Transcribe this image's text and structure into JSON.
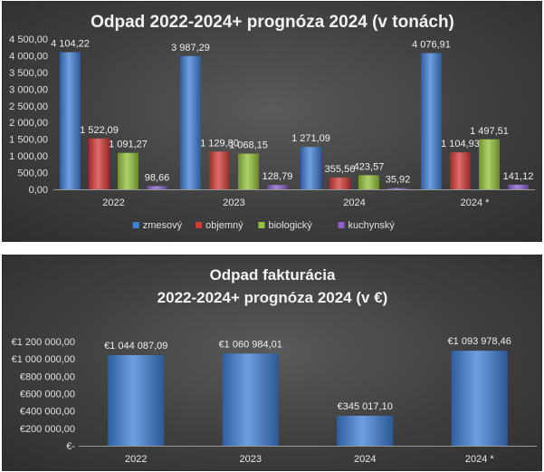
{
  "chart_data": [
    {
      "type": "bar",
      "title": "Odpad 2022-2024+ prognóza 2024 (v tonách)",
      "categories": [
        "2022",
        "2023",
        "2024",
        "2024 *"
      ],
      "series": [
        {
          "name": "zmesový",
          "color": "#3f7fd6",
          "values": [
            4104.22,
            3987.29,
            1271.09,
            4076.91
          ],
          "labels": [
            "4 104,22",
            "3 987,29",
            "1 271,09",
            "4 076,91"
          ]
        },
        {
          "name": "objemný",
          "color": "#d23b36",
          "values": [
            1522.09,
            1129.8,
            355.56,
            1104.93
          ],
          "labels": [
            "1 522,09",
            "1 129,80",
            "355,56",
            "1 104,93"
          ]
        },
        {
          "name": "biologický",
          "color": "#94c23a",
          "values": [
            1091.27,
            1068.15,
            423.57,
            1497.51
          ],
          "labels": [
            "1 091,27",
            "1 068,15",
            "423,57",
            "1 497,51"
          ]
        },
        {
          "name": "kuchynský",
          "color": "#8a5fc8",
          "values": [
            98.66,
            128.79,
            35.92,
            141.12
          ],
          "labels": [
            "98,66",
            "128,79",
            "35,92",
            "141,12"
          ]
        }
      ],
      "ylim": [
        0,
        4500
      ],
      "yticks": [
        "0,00",
        "500,00",
        "1 000,00",
        "1 500,00",
        "2 000,00",
        "2 500,00",
        "3 000,00",
        "3 500,00",
        "4 000,00",
        "4 500,00"
      ],
      "legend": "bottom",
      "grid": false
    },
    {
      "type": "bar",
      "title": [
        "Odpad fakturácia",
        "2022-2024+ prognóza 2024 (v €)"
      ],
      "categories": [
        "2022",
        "2023",
        "2024",
        "2024 *"
      ],
      "series": [
        {
          "color": "#3f7fd6",
          "values": [
            1044087.09,
            1060984.01,
            345017.1,
            1093978.46
          ],
          "labels": [
            "€1 044 087,09",
            "€1 060 984,01",
            "€345 017,10",
            "€1 093 978,46"
          ]
        }
      ],
      "ylim": [
        0,
        1200000
      ],
      "yticks": [
        "€-",
        "€200 000,00",
        "€400 000,00",
        "€600 000,00",
        "€800 000,00",
        "€1 000 000,00",
        "€1 200 000,00"
      ],
      "legend": "none",
      "grid": false
    }
  ]
}
